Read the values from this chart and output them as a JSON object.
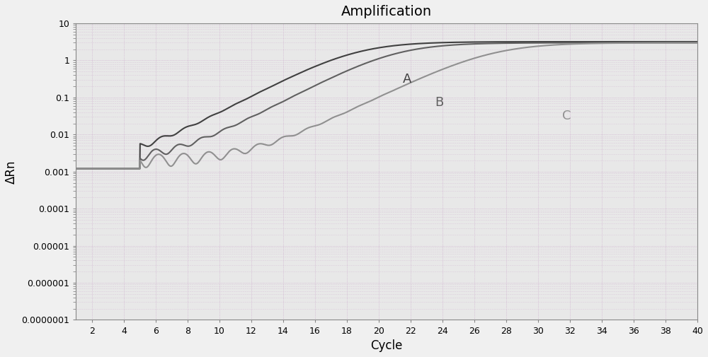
{
  "title": "Amplification",
  "xlabel": "Cycle",
  "ylabel": "ΔRn",
  "xlim": [
    1,
    40
  ],
  "ylim_log": [
    1e-07,
    10
  ],
  "xticks": [
    2,
    4,
    6,
    8,
    10,
    12,
    14,
    16,
    18,
    20,
    22,
    24,
    26,
    28,
    30,
    32,
    34,
    36,
    38,
    40
  ],
  "yticks": [
    1e-07,
    1e-06,
    1e-05,
    0.0001,
    0.001,
    0.01,
    0.1,
    1,
    10
  ],
  "ytick_labels": [
    "0.0000001",
    "0.000001",
    "0.00001",
    "0.0001",
    "0.001",
    "0.01",
    "0.1",
    "1",
    "10"
  ],
  "bg_color": "#e8e8e8",
  "grid_color": "#c8a0c8",
  "curve_color_A": "#404040",
  "curve_color_B": "#606060",
  "curve_color_C": "#909090",
  "label_A": "A",
  "label_B": "B",
  "label_C": "C"
}
